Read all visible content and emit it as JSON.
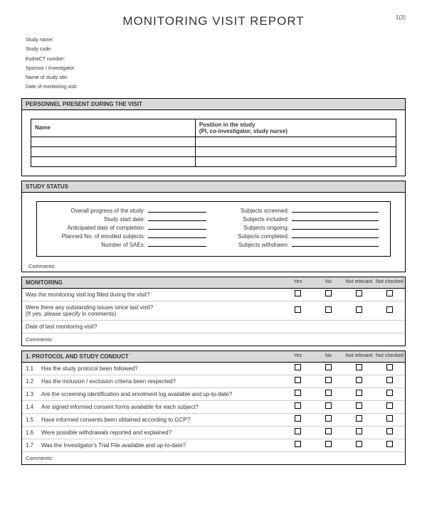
{
  "page": {
    "title": "MONITORING VISIT REPORT",
    "pageno": "1(3)"
  },
  "meta": [
    "Study name:",
    "Study code:",
    "EudraCT number:",
    "Sponsor / Investigator:",
    "Name of study site:",
    "Date of monitoring visit:"
  ],
  "personnel": {
    "header": "PERSONNEL PRESENT DURING THE VISIT",
    "cols": {
      "name": "Name",
      "position": "Position in the study\n(PI, co-investigator, study nurse)"
    },
    "rows": 3
  },
  "status": {
    "header": "STUDY STATUS",
    "left": [
      "Overall progress of the study:",
      "Study start date:",
      "Anticipated date of completion:",
      "Planned No. of enrolled subjects:",
      "Number of SAEs:"
    ],
    "right": [
      "Subjects screened:",
      "Subjects included:",
      "Subjects ongoing:",
      "Subjects completed:",
      "Subjects withdrawn:"
    ],
    "comments": "Comments:"
  },
  "chkcols": {
    "yes": "Yes",
    "no": "No",
    "notrel": "Not relevant",
    "notchk": "Not checked"
  },
  "monitoring": {
    "header": "MONITORING",
    "q1": "Was the monitoring visit log filled during the visit?",
    "q2": "Were there any outstanding issues since last visit?\n(If yes, please specify in comments)",
    "q3": "Date of last monitoring visit?",
    "comments": "Comments:"
  },
  "protocol": {
    "header": "1.    PROTOCOL AND STUDY CONDUCT",
    "items": [
      {
        "n": "1.1",
        "q": "Has the study protocol been followed?"
      },
      {
        "n": "1.2",
        "q": "Has the inclusion / exclusion criteria been respected?"
      },
      {
        "n": "1.3",
        "q": "Are the screening identification and enrolment log available and up-to-date?"
      },
      {
        "n": "1.4",
        "q": "Are signed informed consent forms available for each subject?"
      },
      {
        "n": "1.5",
        "q": "Have informed consents been obtained according to GCP?"
      },
      {
        "n": "1.6",
        "q": "Were possible withdrawals reported and explained?"
      },
      {
        "n": "1.7",
        "q": "Was the Investigator's Trial File available and up-to-date?"
      }
    ],
    "comments": "Comments:"
  }
}
